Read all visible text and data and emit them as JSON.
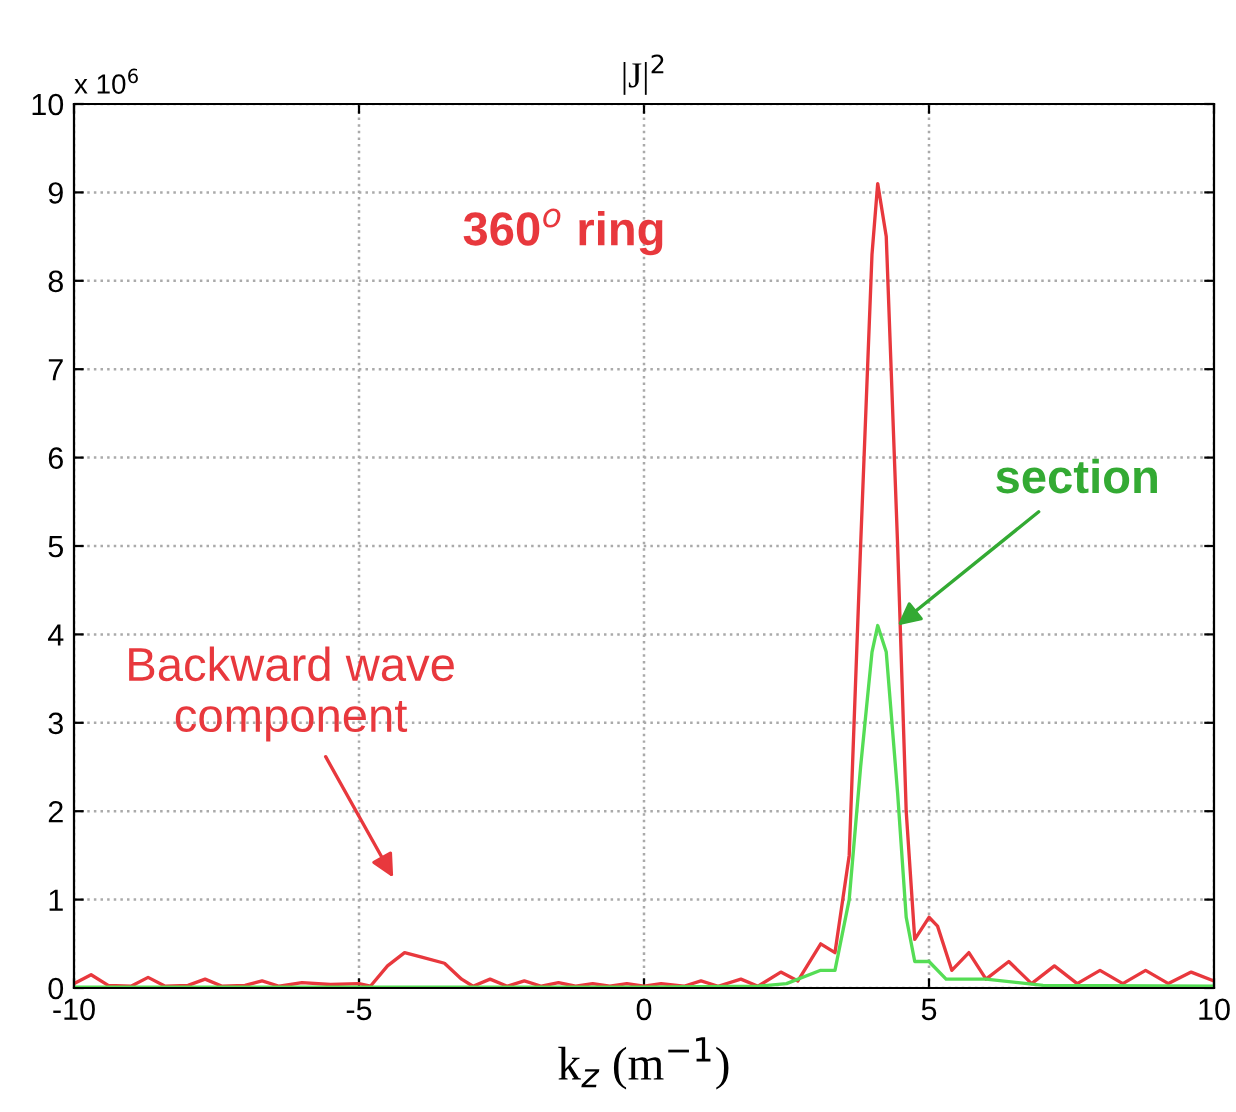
{
  "chart_data": {
    "type": "line",
    "title": "|J|$^{2}$",
    "xlabel": "k$_{z}$ (m$^{−1}$)",
    "xlim": [
      -10,
      10
    ],
    "ylim": [
      0,
      10
    ],
    "xticks": [
      -10,
      -5,
      0,
      5,
      10
    ],
    "yticks": [
      0,
      1,
      2,
      3,
      4,
      5,
      6,
      7,
      8,
      9,
      10
    ],
    "grid": true,
    "legend": false,
    "line_style": "solid",
    "annotations": [
      "x 10$^{6}$",
      "Backward wave\ncomponent"
    ],
    "series": [
      {
        "name": "360$^{o}$ ring",
        "color": "#e8383d",
        "x": [
          -10,
          -9.7,
          -9.4,
          -9.0,
          -8.7,
          -8.4,
          -8.0,
          -7.7,
          -7.4,
          -7.0,
          -6.7,
          -6.4,
          -6.0,
          -5.5,
          -5.0,
          -4.8,
          -4.5,
          -4.2,
          -3.9,
          -3.5,
          -3.2,
          -3.0,
          -2.7,
          -2.4,
          -2.1,
          -1.8,
          -1.5,
          -1.2,
          -0.9,
          -0.6,
          -0.3,
          0,
          0.3,
          0.7,
          1.0,
          1.3,
          1.7,
          2.0,
          2.4,
          2.7,
          3.1,
          3.35,
          3.6,
          3.8,
          4.0,
          4.1,
          4.25,
          4.45,
          4.6,
          4.75,
          5.0,
          5.15,
          5.4,
          5.7,
          6.0,
          6.4,
          6.8,
          7.2,
          7.6,
          8.0,
          8.4,
          8.8,
          9.2,
          9.6,
          10
        ],
        "values": [
          0.05,
          0.15,
          0.03,
          0.02,
          0.12,
          0.02,
          0.03,
          0.1,
          0.02,
          0.03,
          0.08,
          0.02,
          0.06,
          0.04,
          0.05,
          0.02,
          0.25,
          0.4,
          0.35,
          0.28,
          0.1,
          0.02,
          0.1,
          0.02,
          0.08,
          0.02,
          0.06,
          0.02,
          0.05,
          0.02,
          0.05,
          0.02,
          0.05,
          0.02,
          0.08,
          0.02,
          0.1,
          0.02,
          0.18,
          0.08,
          0.5,
          0.4,
          1.5,
          5,
          8.3,
          9.1,
          8.5,
          5,
          2,
          0.55,
          0.8,
          0.7,
          0.2,
          0.4,
          0.1,
          0.3,
          0.05,
          0.25,
          0.05,
          0.2,
          0.05,
          0.2,
          0.05,
          0.18,
          0.08
        ]
      },
      {
        "name": "section",
        "color": "#55dd55",
        "x": [
          -10,
          -5,
          0,
          2.0,
          2.5,
          3.1,
          3.35,
          3.6,
          3.8,
          4.0,
          4.1,
          4.25,
          4.45,
          4.6,
          4.75,
          5.0,
          5.3,
          6.0,
          7.0,
          10
        ],
        "values": [
          0.01,
          0.01,
          0.01,
          0.02,
          0.05,
          0.2,
          0.2,
          1.0,
          2.5,
          3.8,
          4.1,
          3.8,
          2.2,
          0.8,
          0.3,
          0.3,
          0.1,
          0.1,
          0.03,
          0.02
        ]
      }
    ]
  }
}
